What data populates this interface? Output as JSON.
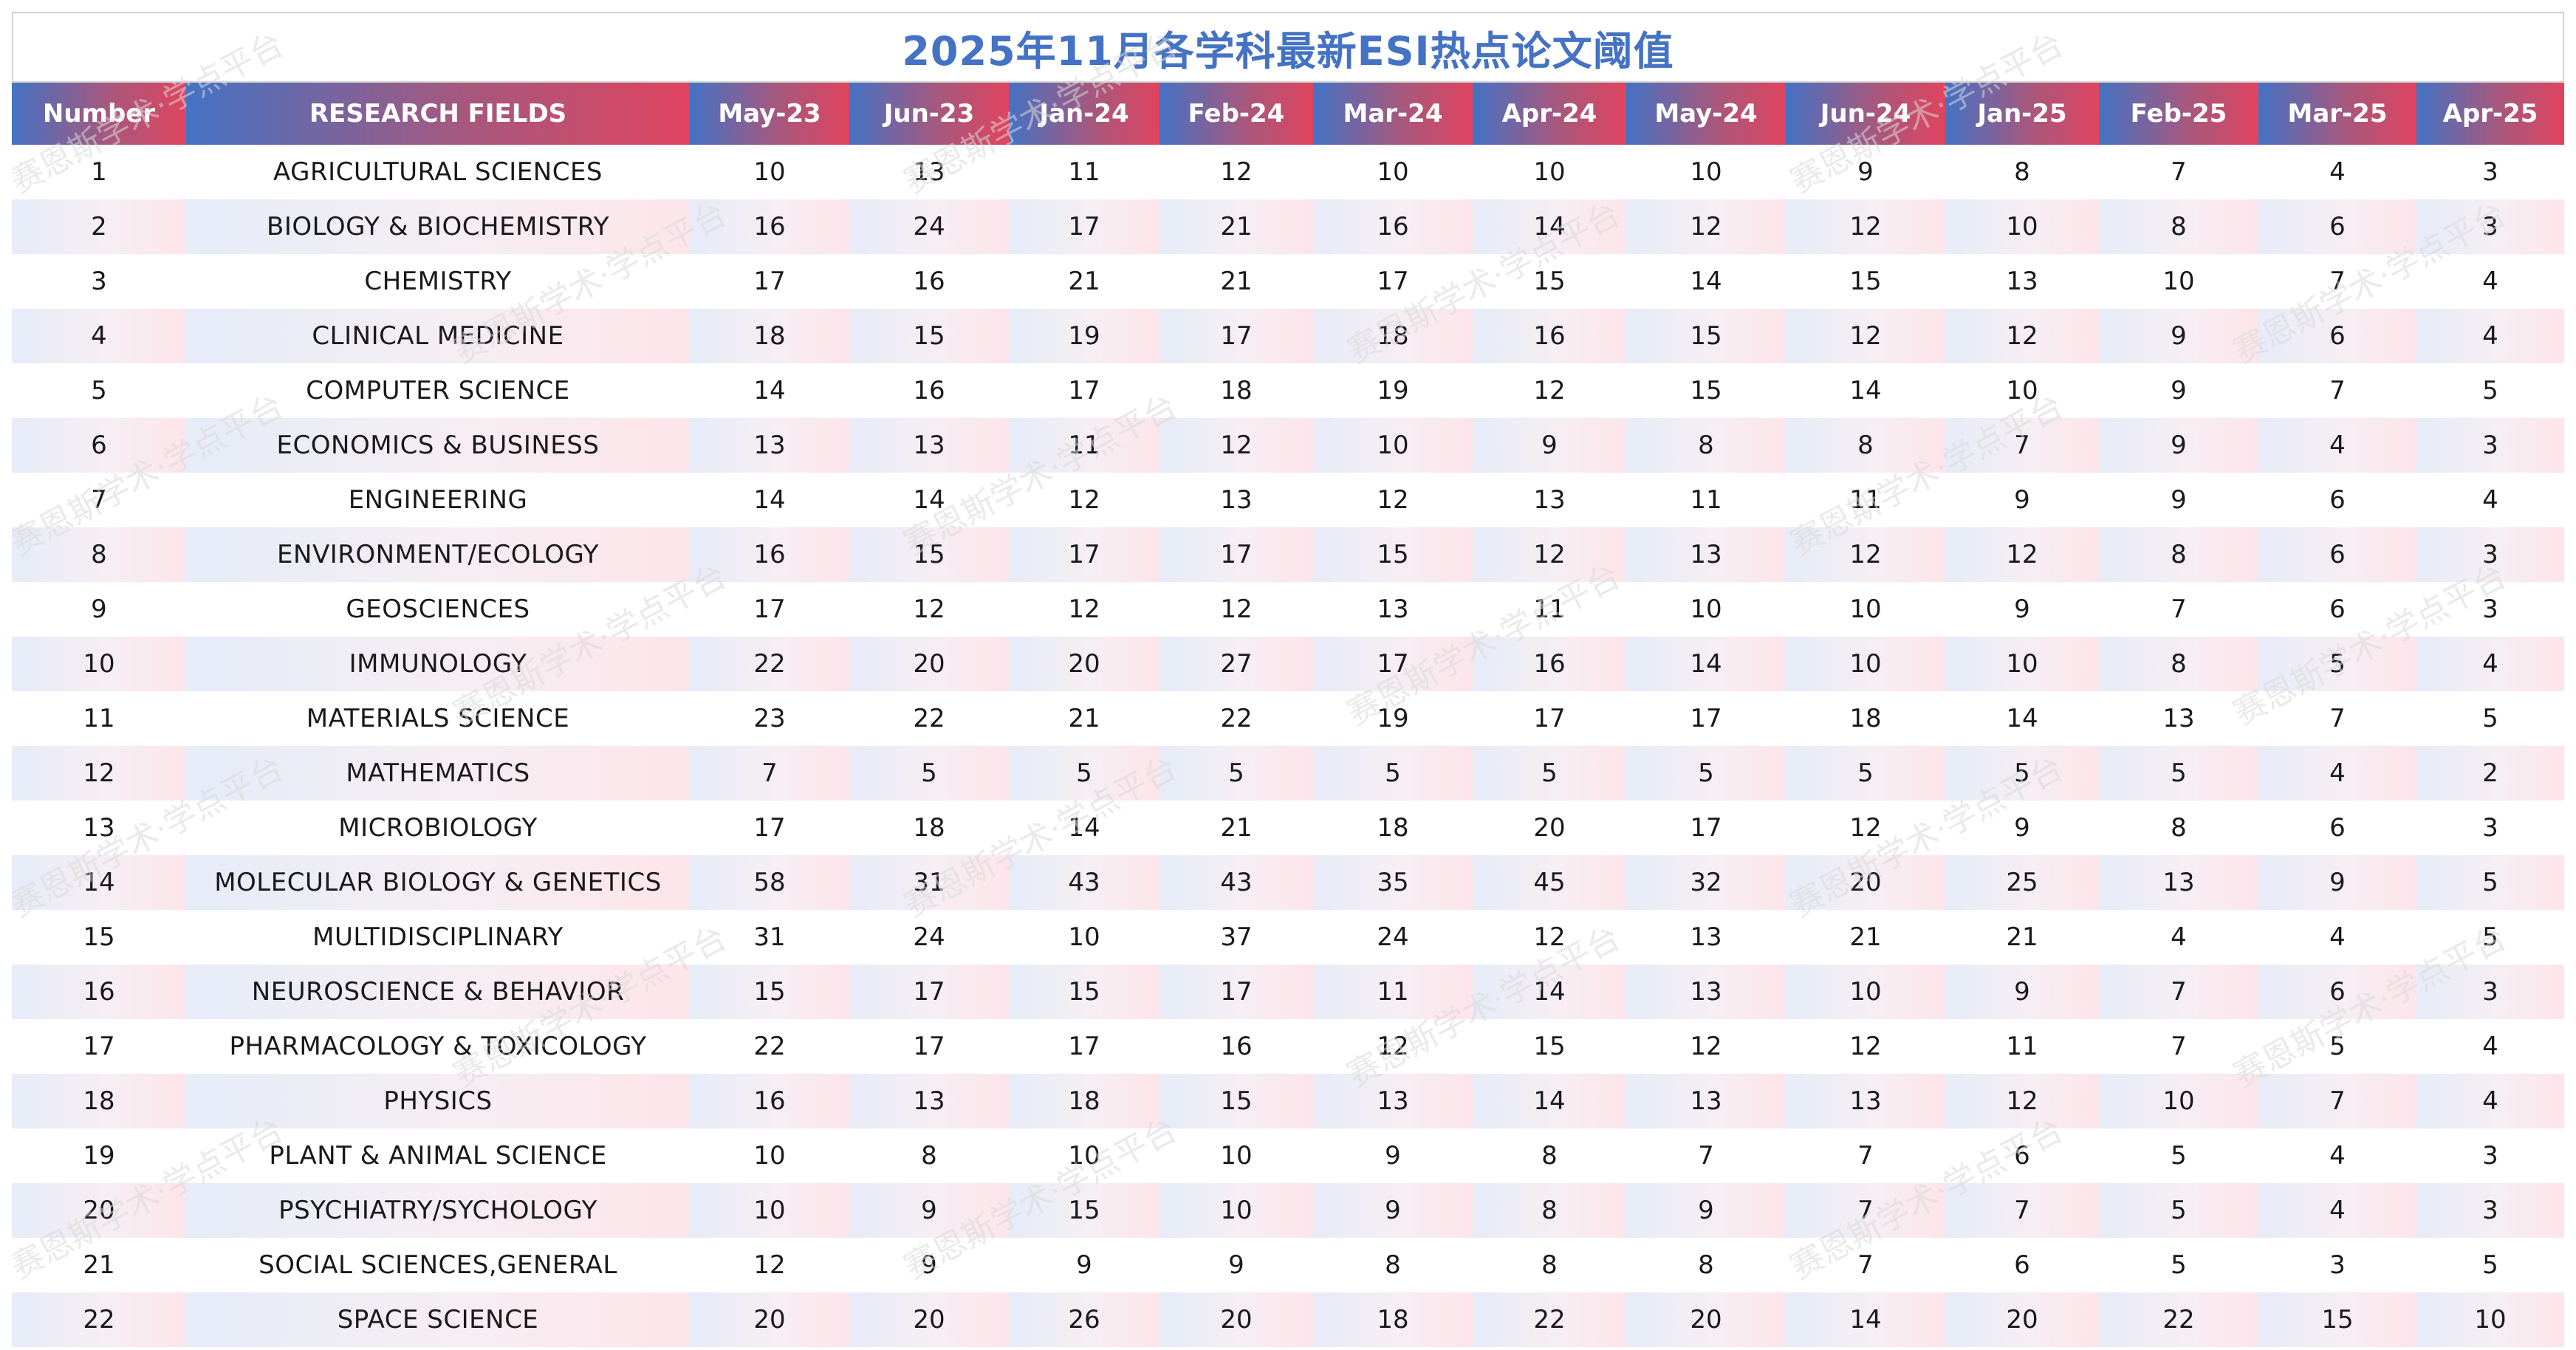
{
  "chart_data": {
    "type": "table",
    "title": "2025年11月各学科最新ESI热点论文阈值",
    "columns": [
      "Number",
      "RESEARCH FIELDS",
      "May-23",
      "Jun-23",
      "Jan-24",
      "Feb-24",
      "Mar-24",
      "Apr-24",
      "May-24",
      "Jun-24",
      "Jan-25",
      "Feb-25",
      "Mar-25",
      "Apr-25"
    ],
    "rows": [
      {
        "number": "1",
        "field": "AGRICULTURAL SCIENCES",
        "values": [
          "10",
          "13",
          "11",
          "12",
          "10",
          "10",
          "10",
          "9",
          "8",
          "7",
          "4",
          "3"
        ]
      },
      {
        "number": "2",
        "field": "BIOLOGY & BIOCHEMISTRY",
        "values": [
          "16",
          "24",
          "17",
          "21",
          "16",
          "14",
          "12",
          "12",
          "10",
          "8",
          "6",
          "3"
        ]
      },
      {
        "number": "3",
        "field": "CHEMISTRY",
        "values": [
          "17",
          "16",
          "21",
          "21",
          "17",
          "15",
          "14",
          "15",
          "13",
          "10",
          "7",
          "4"
        ]
      },
      {
        "number": "4",
        "field": "CLINICAL MEDICINE",
        "values": [
          "18",
          "15",
          "19",
          "17",
          "18",
          "16",
          "15",
          "12",
          "12",
          "9",
          "6",
          "4"
        ]
      },
      {
        "number": "5",
        "field": "COMPUTER SCIENCE",
        "values": [
          "14",
          "16",
          "17",
          "18",
          "19",
          "12",
          "15",
          "14",
          "10",
          "9",
          "7",
          "5"
        ]
      },
      {
        "number": "6",
        "field": "ECONOMICS & BUSINESS",
        "values": [
          "13",
          "13",
          "11",
          "12",
          "10",
          "9",
          "8",
          "8",
          "7",
          "9",
          "4",
          "3"
        ]
      },
      {
        "number": "7",
        "field": "ENGINEERING",
        "values": [
          "14",
          "14",
          "12",
          "13",
          "12",
          "13",
          "11",
          "11",
          "9",
          "9",
          "6",
          "4"
        ]
      },
      {
        "number": "8",
        "field": "ENVIRONMENT/ECOLOGY",
        "values": [
          "16",
          "15",
          "17",
          "17",
          "15",
          "12",
          "13",
          "12",
          "12",
          "8",
          "6",
          "3"
        ]
      },
      {
        "number": "9",
        "field": "GEOSCIENCES",
        "values": [
          "17",
          "12",
          "12",
          "12",
          "13",
          "11",
          "10",
          "10",
          "9",
          "7",
          "6",
          "3"
        ]
      },
      {
        "number": "10",
        "field": "IMMUNOLOGY",
        "values": [
          "22",
          "20",
          "20",
          "27",
          "17",
          "16",
          "14",
          "10",
          "10",
          "8",
          "5",
          "4"
        ]
      },
      {
        "number": "11",
        "field": "MATERIALS SCIENCE",
        "values": [
          "23",
          "22",
          "21",
          "22",
          "19",
          "17",
          "17",
          "18",
          "14",
          "13",
          "7",
          "5"
        ]
      },
      {
        "number": "12",
        "field": "MATHEMATICS",
        "values": [
          "7",
          "5",
          "5",
          "5",
          "5",
          "5",
          "5",
          "5",
          "5",
          "5",
          "4",
          "2"
        ]
      },
      {
        "number": "13",
        "field": "MICROBIOLOGY",
        "values": [
          "17",
          "18",
          "14",
          "21",
          "18",
          "20",
          "17",
          "12",
          "9",
          "8",
          "6",
          "3"
        ]
      },
      {
        "number": "14",
        "field": "MOLECULAR BIOLOGY & GENETICS",
        "values": [
          "58",
          "31",
          "43",
          "43",
          "35",
          "45",
          "32",
          "20",
          "25",
          "13",
          "9",
          "5"
        ]
      },
      {
        "number": "15",
        "field": "MULTIDISCIPLINARY",
        "values": [
          "31",
          "24",
          "10",
          "37",
          "24",
          "12",
          "13",
          "21",
          "21",
          "4",
          "4",
          "5"
        ]
      },
      {
        "number": "16",
        "field": "NEUROSCIENCE & BEHAVIOR",
        "values": [
          "15",
          "17",
          "15",
          "17",
          "11",
          "14",
          "13",
          "10",
          "9",
          "7",
          "6",
          "3"
        ]
      },
      {
        "number": "17",
        "field": "PHARMACOLOGY & TOXICOLOGY",
        "values": [
          "22",
          "17",
          "17",
          "16",
          "12",
          "15",
          "12",
          "12",
          "11",
          "7",
          "5",
          "4"
        ]
      },
      {
        "number": "18",
        "field": "PHYSICS",
        "values": [
          "16",
          "13",
          "18",
          "15",
          "13",
          "14",
          "13",
          "13",
          "12",
          "10",
          "7",
          "4"
        ]
      },
      {
        "number": "19",
        "field": "PLANT & ANIMAL SCIENCE",
        "values": [
          "10",
          "8",
          "10",
          "10",
          "9",
          "8",
          "7",
          "7",
          "6",
          "5",
          "4",
          "3"
        ]
      },
      {
        "number": "20",
        "field": "PSYCHIATRY/SYCHOLOGY",
        "values": [
          "10",
          "9",
          "15",
          "10",
          "9",
          "8",
          "9",
          "7",
          "7",
          "5",
          "4",
          "3"
        ]
      },
      {
        "number": "21",
        "field": "SOCIAL SCIENCES,GENERAL",
        "values": [
          "12",
          "9",
          "9",
          "9",
          "8",
          "8",
          "8",
          "7",
          "6",
          "5",
          "3",
          "5"
        ]
      },
      {
        "number": "22",
        "field": "SPACE SCIENCE",
        "values": [
          "20",
          "20",
          "26",
          "20",
          "18",
          "22",
          "20",
          "14",
          "20",
          "22",
          "15",
          "10"
        ]
      }
    ]
  },
  "watermark": {
    "text": "赛恩斯学术·学点平台"
  },
  "colors": {
    "title": "#4472c4",
    "header_gradient_start": "#4472c4",
    "header_gradient_end": "#e0445f",
    "stripe_start": "#e6ecf8",
    "stripe_end": "#fde5ea",
    "watermark": "#d9d9d9"
  }
}
